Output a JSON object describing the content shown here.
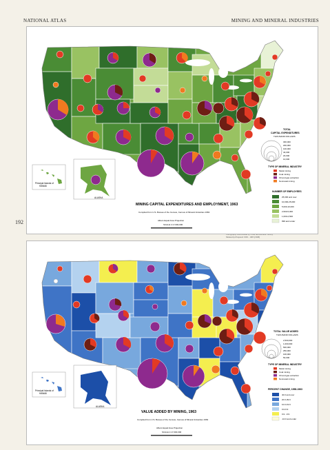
{
  "header": {
    "left": "NATIONAL ATLAS",
    "right": "MINING AND MINERAL INDUSTRIES"
  },
  "page_number": "192",
  "colors": {
    "land_emp": [
      "#2f6e2b",
      "#4a8c35",
      "#6ea642",
      "#99c262",
      "#c3dc97",
      "#e8f2d6"
    ],
    "land_value": [
      "#1c4fa8",
      "#3f74c6",
      "#78a8dd",
      "#b4d2ef",
      "#f4ee4f",
      "#fdfbd8"
    ],
    "coal": "#6e1e14",
    "oil_gas": "#8e2a8e",
    "metal": "#e23a24",
    "nonmetal": "#f07a20",
    "water": "#ffffff",
    "border": "#ffffff"
  },
  "top_map": {
    "title": "MINING CAPITAL EXPENDITURES AND EMPLOYMENT, 1963",
    "subtitle_line": "Compiled from U.S. Bureau of the Census, Census of Mineral Industries 1963",
    "projection": "Albers Equal Area Projection",
    "scale": "SCALE 1:17,000,000",
    "legend_size_title": [
      "TOTAL",
      "CAPITAL EXPENDITURES",
      "THOUSAND DOLLARS"
    ],
    "legend_size_values": [
      "10,000",
      "20,000",
      "40,000",
      "100,000",
      "200,000",
      "300,000"
    ],
    "legend_type_title": "TYPE OF MINERAL INDUSTRY",
    "legend_types": [
      "Metal mining",
      "Coal mining",
      "Oil and gas extraction",
      "Nonmetal mining"
    ],
    "legend_emp_title": "NUMBER OF EMPLOYEES",
    "legend_emp_classes": [
      "25,000 and over",
      "10,000-25,000",
      "5,000-10,000",
      "2,500-5,000",
      "1,000-2,500",
      "999 and under"
    ],
    "inset_hawaii": [
      "Principal Islands of",
      "HAWAII"
    ],
    "inset_alaska": "ALASKA"
  },
  "bottom_map": {
    "title": "VALUE ADDED BY MINING, 1963",
    "subtitle_line": "Compiled from U.S. Bureau of the Census, Census of Mineral Industries 1963",
    "projection": "Albers Equal Area Projection",
    "scale": "SCALE 1:17,000,000",
    "legend_size_title": [
      "TOTAL VALUE ADDED",
      "THOUSAND DOLLARS"
    ],
    "legend_size_values": [
      "50,000",
      "100,000",
      "250,000",
      "500,000",
      "1,000,000",
      "2,500,000"
    ],
    "legend_type_title": "TYPE OF MINERAL INDUSTRY",
    "legend_types": [
      "Metal mining",
      "Coal mining",
      "Oil and gas extraction",
      "Nonmetal mining"
    ],
    "legend_pct_title": "PERCENT CHANGE, 1958-1963",
    "legend_pct_classes": [
      "40.0 and over",
      "20.0-39.9",
      "10.0-19.9",
      "0.0-9.9",
      "0.0- -9.9",
      "-10.0 and under"
    ],
    "inset_hawaii": [
      "Principal Islands of",
      "HAWAII"
    ],
    "inset_alaska": "ALASKA"
  },
  "credit_text": [
    "Cartography from Bureau by Coast and Geodetic Survey",
    "Manuscript Prepared 1963 - 1965 (1968)"
  ]
}
